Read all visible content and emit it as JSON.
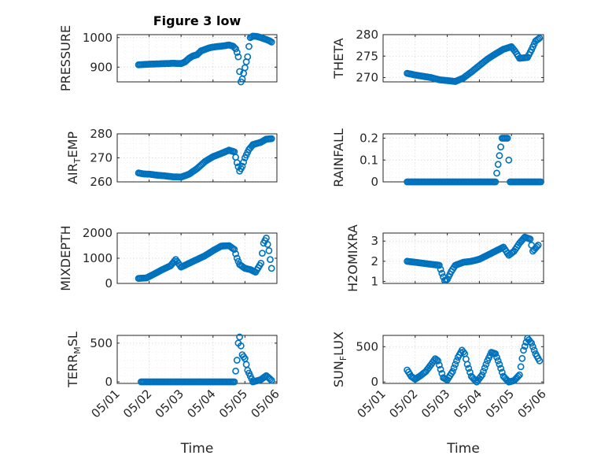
{
  "figure_title": "Figure 3 low",
  "xlabel": "Time",
  "date_ticks": [
    "05/01",
    "05/02",
    "05/03",
    "05/04",
    "05/05",
    "05/06"
  ],
  "marker_color": "#0072BD",
  "chart_data": [
    {
      "type": "scatter",
      "ylabel_parts": [
        "PRESSURE"
      ],
      "ylim": [
        850,
        1010
      ],
      "yticks": [
        900,
        1000
      ],
      "xlim": [
        "05/01",
        "05/06"
      ],
      "grid": true,
      "title": "Figure 3 low",
      "points": [
        [
          "2020-05-01T16:00",
          908
        ],
        [
          "2020-05-01T20:00",
          909
        ],
        [
          "2020-05-02T00:00",
          910
        ],
        [
          "2020-05-02T06:00",
          911
        ],
        [
          "2020-05-02T12:00",
          912
        ],
        [
          "2020-05-02T18:00",
          913
        ],
        [
          "2020-05-03T00:00",
          912
        ],
        [
          "2020-05-03T03:00",
          918
        ],
        [
          "2020-05-03T06:00",
          930
        ],
        [
          "2020-05-03T09:00",
          938
        ],
        [
          "2020-05-03T12:00",
          942
        ],
        [
          "2020-05-03T15:00",
          955
        ],
        [
          "2020-05-03T18:00",
          960
        ],
        [
          "2020-05-03T21:00",
          965
        ],
        [
          "2020-05-04T00:00",
          968
        ],
        [
          "2020-05-04T04:00",
          970
        ],
        [
          "2020-05-04T08:00",
          972
        ],
        [
          "2020-05-04T12:00",
          975
        ],
        [
          "2020-05-04T15:00",
          971
        ],
        [
          "2020-05-04T17:00",
          962
        ],
        [
          "2020-05-04T18:00",
          950
        ],
        [
          "2020-05-04T19:00",
          935
        ],
        [
          "2020-05-04T20:00",
          885
        ],
        [
          "2020-05-04T21:00",
          850
        ],
        [
          "2020-05-04T22:00",
          860
        ],
        [
          "2020-05-05T00:00",
          898
        ],
        [
          "2020-05-05T01:00",
          918
        ],
        [
          "2020-05-05T02:00",
          935
        ],
        [
          "2020-05-05T03:00",
          970
        ],
        [
          "2020-05-05T04:00",
          1000
        ],
        [
          "2020-05-05T06:00",
          1005
        ],
        [
          "2020-05-05T09:00",
          1004
        ],
        [
          "2020-05-05T12:00",
          1000
        ],
        [
          "2020-05-05T15:00",
          995
        ],
        [
          "2020-05-05T18:00",
          990
        ],
        [
          "2020-05-05T20:00",
          985
        ]
      ]
    },
    {
      "type": "scatter",
      "ylabel_parts": [
        "THETA"
      ],
      "ylim": [
        269,
        280
      ],
      "yticks": [
        270,
        275,
        280
      ],
      "xlim": [
        "05/01",
        "05/06"
      ],
      "grid": true,
      "points": [
        [
          "2020-05-01T18:00",
          271
        ],
        [
          "2020-05-02T00:00",
          270.6
        ],
        [
          "2020-05-02T06:00",
          270.3
        ],
        [
          "2020-05-02T12:00",
          270
        ],
        [
          "2020-05-02T18:00",
          269.5
        ],
        [
          "2020-05-03T00:00",
          269.3
        ],
        [
          "2020-05-03T06:00",
          269.1
        ],
        [
          "2020-05-03T12:00",
          269.9
        ],
        [
          "2020-05-03T18:00",
          271.3
        ],
        [
          "2020-05-04T00:00",
          272.8
        ],
        [
          "2020-05-04T06:00",
          274.3
        ],
        [
          "2020-05-04T12:00",
          275.5
        ],
        [
          "2020-05-04T18:00",
          276.6
        ],
        [
          "2020-05-05T00:00",
          277.2
        ],
        [
          "2020-05-05T03:00",
          276
        ],
        [
          "2020-05-05T06:00",
          274.5
        ],
        [
          "2020-05-05T12:00",
          274.7
        ],
        [
          "2020-05-05T15:00",
          276.5
        ],
        [
          "2020-05-05T18:00",
          278.5
        ],
        [
          "2020-05-05T21:00",
          279.2
        ]
      ]
    },
    {
      "type": "scatter",
      "ylabel_parts": [
        "AIR",
        "T",
        "EMP"
      ],
      "ylim": [
        260,
        280
      ],
      "yticks": [
        260,
        270,
        280
      ],
      "xlim": [
        "05/01",
        "05/06"
      ],
      "grid": true,
      "points": [
        [
          "2020-05-01T16:00",
          263.7
        ],
        [
          "2020-05-01T20:00",
          263.3
        ],
        [
          "2020-05-02T00:00",
          263.2
        ],
        [
          "2020-05-02T06:00",
          262.8
        ],
        [
          "2020-05-02T12:00",
          262.5
        ],
        [
          "2020-05-02T18:00",
          262.1
        ],
        [
          "2020-05-03T00:00",
          262
        ],
        [
          "2020-05-03T06:00",
          263.2
        ],
        [
          "2020-05-03T12:00",
          265.5
        ],
        [
          "2020-05-03T18:00",
          268.5
        ],
        [
          "2020-05-04T00:00",
          270.5
        ],
        [
          "2020-05-04T06:00",
          271.8
        ],
        [
          "2020-05-04T12:00",
          273.2
        ],
        [
          "2020-05-04T16:00",
          272.5
        ],
        [
          "2020-05-04T18:00",
          268
        ],
        [
          "2020-05-04T20:00",
          264.5
        ],
        [
          "2020-05-04T22:00",
          266.5
        ],
        [
          "2020-05-05T00:00",
          270
        ],
        [
          "2020-05-05T03:00",
          273.5
        ],
        [
          "2020-05-05T06:00",
          275.5
        ],
        [
          "2020-05-05T12:00",
          276.5
        ],
        [
          "2020-05-05T16:00",
          277.8
        ],
        [
          "2020-05-05T20:00",
          278
        ]
      ]
    },
    {
      "type": "scatter",
      "ylabel_parts": [
        "RAINFALL"
      ],
      "ylim": [
        0,
        0.22
      ],
      "yticks": [
        0,
        0.1,
        0.2
      ],
      "xlim": [
        "05/01",
        "05/06"
      ],
      "grid": true,
      "points": [
        [
          "2020-05-01T18:00",
          0
        ],
        [
          "2020-05-02T00:00",
          0
        ],
        [
          "2020-05-02T06:00",
          0
        ],
        [
          "2020-05-02T12:00",
          0
        ],
        [
          "2020-05-02T18:00",
          0
        ],
        [
          "2020-05-03T00:00",
          0
        ],
        [
          "2020-05-03T06:00",
          0
        ],
        [
          "2020-05-03T12:00",
          0
        ],
        [
          "2020-05-03T18:00",
          0
        ],
        [
          "2020-05-04T00:00",
          0
        ],
        [
          "2020-05-04T06:00",
          0
        ],
        [
          "2020-05-04T12:00",
          0
        ],
        [
          "2020-05-04T17:00",
          0.2
        ],
        [
          "2020-05-04T19:00",
          0.2
        ],
        [
          "2020-05-04T21:00",
          0.2
        ],
        [
          "2020-05-04T23:00",
          0
        ],
        [
          "2020-05-05T06:00",
          0
        ],
        [
          "2020-05-05T12:00",
          0
        ],
        [
          "2020-05-05T18:00",
          0
        ],
        [
          "2020-05-05T22:00",
          0
        ]
      ]
    },
    {
      "type": "scatter",
      "ylabel_parts": [
        "MIXDEPTH"
      ],
      "ylim": [
        0,
        2000
      ],
      "yticks": [
        0,
        1000,
        2000
      ],
      "xlim": [
        "05/01",
        "05/06"
      ],
      "grid": true,
      "points": [
        [
          "2020-05-01T16:00",
          200
        ],
        [
          "2020-05-01T22:00",
          220
        ],
        [
          "2020-05-02T04:00",
          380
        ],
        [
          "2020-05-02T10:00",
          550
        ],
        [
          "2020-05-02T16:00",
          700
        ],
        [
          "2020-05-02T20:00",
          950
        ],
        [
          "2020-05-03T00:00",
          650
        ],
        [
          "2020-05-03T06:00",
          800
        ],
        [
          "2020-05-03T12:00",
          950
        ],
        [
          "2020-05-03T18:00",
          1100
        ],
        [
          "2020-05-04T00:00",
          1300
        ],
        [
          "2020-05-04T06:00",
          1480
        ],
        [
          "2020-05-04T12:00",
          1500
        ],
        [
          "2020-05-04T16:00",
          1350
        ],
        [
          "2020-05-04T18:00",
          1000
        ],
        [
          "2020-05-04T20:00",
          750
        ],
        [
          "2020-05-05T00:00",
          600
        ],
        [
          "2020-05-05T04:00",
          550
        ],
        [
          "2020-05-05T08:00",
          450
        ],
        [
          "2020-05-05T12:00",
          800
        ],
        [
          "2020-05-05T14:00",
          1600
        ],
        [
          "2020-05-05T16:00",
          1800
        ],
        [
          "2020-05-05T18:00",
          1300
        ],
        [
          "2020-05-05T20:00",
          600
        ]
      ]
    },
    {
      "type": "scatter",
      "ylabel_parts": [
        "H2OMIXRA"
      ],
      "ylim": [
        0.9,
        3.4
      ],
      "yticks": [
        1,
        2,
        3
      ],
      "xlim": [
        "05/01",
        "05/06"
      ],
      "grid": true,
      "points": [
        [
          "2020-05-01T18:00",
          2
        ],
        [
          "2020-05-02T00:00",
          1.95
        ],
        [
          "2020-05-02T06:00",
          1.9
        ],
        [
          "2020-05-02T12:00",
          1.85
        ],
        [
          "2020-05-02T18:00",
          1.8
        ],
        [
          "2020-05-02T20:00",
          1.4
        ],
        [
          "2020-05-02T22:00",
          1.05
        ],
        [
          "2020-05-03T00:00",
          1.1
        ],
        [
          "2020-05-03T03:00",
          1.5
        ],
        [
          "2020-05-03T06:00",
          1.8
        ],
        [
          "2020-05-03T12:00",
          1.95
        ],
        [
          "2020-05-03T18:00",
          2
        ],
        [
          "2020-05-04T00:00",
          2.1
        ],
        [
          "2020-05-04T06:00",
          2.3
        ],
        [
          "2020-05-04T12:00",
          2.5
        ],
        [
          "2020-05-04T18:00",
          2.7
        ],
        [
          "2020-05-04T22:00",
          2.3
        ],
        [
          "2020-05-05T02:00",
          2.5
        ],
        [
          "2020-05-05T06:00",
          2.9
        ],
        [
          "2020-05-05T10:00",
          3.2
        ],
        [
          "2020-05-05T14:00",
          3.1
        ],
        [
          "2020-05-05T16:00",
          2.5
        ],
        [
          "2020-05-05T20:00",
          2.8
        ]
      ]
    },
    {
      "type": "scatter",
      "ylabel_parts": [
        "TERR",
        "M",
        "SL"
      ],
      "ylim": [
        -20,
        600
      ],
      "yticks": [
        0,
        500
      ],
      "xlim": [
        "05/01",
        "05/06"
      ],
      "grid": true,
      "points": [
        [
          "2020-05-01T18:00",
          0
        ],
        [
          "2020-05-02T00:00",
          0
        ],
        [
          "2020-05-02T06:00",
          0
        ],
        [
          "2020-05-02T12:00",
          0
        ],
        [
          "2020-05-02T18:00",
          0
        ],
        [
          "2020-05-03T00:00",
          0
        ],
        [
          "2020-05-03T06:00",
          0
        ],
        [
          "2020-05-03T12:00",
          0
        ],
        [
          "2020-05-03T18:00",
          0
        ],
        [
          "2020-05-04T00:00",
          0
        ],
        [
          "2020-05-04T06:00",
          0
        ],
        [
          "2020-05-04T12:00",
          0
        ],
        [
          "2020-05-04T16:00",
          0
        ],
        [
          "2020-05-04T18:00",
          280
        ],
        [
          "2020-05-04T19:00",
          500
        ],
        [
          "2020-05-04T20:00",
          580
        ],
        [
          "2020-05-04T22:00",
          350
        ],
        [
          "2020-05-05T00:00",
          300
        ],
        [
          "2020-05-05T02:00",
          150
        ],
        [
          "2020-05-05T06:00",
          0
        ],
        [
          "2020-05-05T12:00",
          30
        ],
        [
          "2020-05-05T16:00",
          80
        ],
        [
          "2020-05-05T20:00",
          20
        ]
      ]
    },
    {
      "type": "scatter",
      "ylabel_parts": [
        "SUN",
        "F",
        "LUX"
      ],
      "ylim": [
        -20,
        660
      ],
      "yticks": [
        0,
        500
      ],
      "xlim": [
        "05/01",
        "05/06"
      ],
      "grid": true,
      "points": [
        [
          "2020-05-01T18:00",
          170
        ],
        [
          "2020-05-01T21:00",
          80
        ],
        [
          "2020-05-02T00:00",
          40
        ],
        [
          "2020-05-02T04:00",
          90
        ],
        [
          "2020-05-02T08:00",
          150
        ],
        [
          "2020-05-02T12:00",
          250
        ],
        [
          "2020-05-02T15:00",
          330
        ],
        [
          "2020-05-02T17:00",
          300
        ],
        [
          "2020-05-02T19:00",
          180
        ],
        [
          "2020-05-02T21:00",
          60
        ],
        [
          "2020-05-03T00:00",
          30
        ],
        [
          "2020-05-03T04:00",
          150
        ],
        [
          "2020-05-03T08:00",
          350
        ],
        [
          "2020-05-03T11:00",
          450
        ],
        [
          "2020-05-03T13:00",
          400
        ],
        [
          "2020-05-03T15:00",
          250
        ],
        [
          "2020-05-03T18:00",
          80
        ],
        [
          "2020-05-03T22:00",
          0
        ],
        [
          "2020-05-04T02:00",
          100
        ],
        [
          "2020-05-04T06:00",
          300
        ],
        [
          "2020-05-04T09:00",
          420
        ],
        [
          "2020-05-04T12:00",
          400
        ],
        [
          "2020-05-04T15:00",
          250
        ],
        [
          "2020-05-04T18:00",
          80
        ],
        [
          "2020-05-04T22:00",
          0
        ],
        [
          "2020-05-05T02:00",
          20
        ],
        [
          "2020-05-05T06:00",
          100
        ],
        [
          "2020-05-05T09:00",
          450
        ],
        [
          "2020-05-05T12:00",
          620
        ],
        [
          "2020-05-05T15:00",
          550
        ],
        [
          "2020-05-05T18:00",
          400
        ],
        [
          "2020-05-05T21:00",
          300
        ]
      ]
    }
  ]
}
